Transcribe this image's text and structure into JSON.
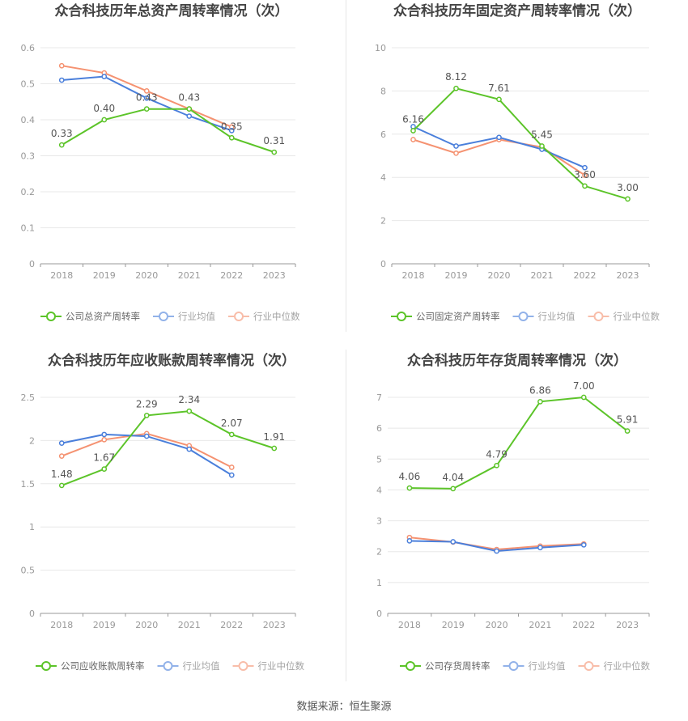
{
  "source_text": "数据来源：恒生聚源",
  "colors": {
    "company": "#5cc429",
    "avg": "#4a7fdb",
    "median": "#f59271",
    "grid": "#e8e8e8",
    "axis": "#999999",
    "tick": "#999999",
    "label": "#555555",
    "title": "#444444"
  },
  "chart_data": [
    {
      "type": "line",
      "title": "众合科技历年总资产周转率情况（次）",
      "categories": [
        "2018",
        "2019",
        "2020",
        "2021",
        "2022",
        "2023"
      ],
      "ylim": [
        0,
        0.6
      ],
      "yticks": [
        "0",
        "0.1",
        "0.2",
        "0.3",
        "0.4",
        "0.5",
        "0.6"
      ],
      "grid": true,
      "legend_position": "bottom",
      "series": [
        {
          "name": "公司总资产周转率",
          "role": "company",
          "values": [
            0.33,
            0.4,
            0.43,
            0.43,
            0.35,
            0.31
          ],
          "labels": [
            "0.33",
            "0.40",
            "0.43",
            "0.43",
            "0.35",
            "0.31"
          ]
        },
        {
          "name": "行业均值",
          "role": "avg",
          "values": [
            0.51,
            0.52,
            0.46,
            0.41,
            0.37,
            null
          ]
        },
        {
          "name": "行业中位数",
          "role": "median",
          "values": [
            0.55,
            0.53,
            0.48,
            0.43,
            0.38,
            null
          ]
        }
      ]
    },
    {
      "type": "line",
      "title": "众合科技历年固定资产周转率情况（次）",
      "categories": [
        "2018",
        "2019",
        "2020",
        "2021",
        "2022",
        "2023"
      ],
      "ylim": [
        0,
        10
      ],
      "yticks": [
        "0",
        "2",
        "4",
        "6",
        "8",
        "10"
      ],
      "grid": true,
      "legend_position": "bottom",
      "series": [
        {
          "name": "公司固定资产周转率",
          "role": "company",
          "values": [
            6.16,
            8.12,
            7.61,
            5.45,
            3.6,
            3.0
          ],
          "labels": [
            "6.16",
            "8.12",
            "7.61",
            "5.45",
            "3.60",
            "3.00"
          ]
        },
        {
          "name": "行业均值",
          "role": "avg",
          "values": [
            6.35,
            5.45,
            5.85,
            5.3,
            4.45,
            null
          ]
        },
        {
          "name": "行业中位数",
          "role": "median",
          "values": [
            5.75,
            5.12,
            5.75,
            5.4,
            4.1,
            null
          ]
        }
      ]
    },
    {
      "type": "line",
      "title": "众合科技历年应收账款周转率情况（次）",
      "categories": [
        "2018",
        "2019",
        "2020",
        "2021",
        "2022",
        "2023"
      ],
      "ylim": [
        0,
        2.5
      ],
      "yticks": [
        "0",
        "0.5",
        "1",
        "1.5",
        "2",
        "2.5"
      ],
      "grid": true,
      "legend_position": "bottom",
      "series": [
        {
          "name": "公司应收账款周转率",
          "role": "company",
          "values": [
            1.48,
            1.67,
            2.29,
            2.34,
            2.07,
            1.91
          ],
          "labels": [
            "1.48",
            "1.67",
            "2.29",
            "2.34",
            "2.07",
            "1.91"
          ]
        },
        {
          "name": "行业均值",
          "role": "avg",
          "values": [
            1.97,
            2.07,
            2.05,
            1.9,
            1.6,
            null
          ]
        },
        {
          "name": "行业中位数",
          "role": "median",
          "values": [
            1.82,
            2.01,
            2.08,
            1.94,
            1.69,
            null
          ]
        }
      ]
    },
    {
      "type": "line",
      "title": "众合科技历年存货周转率情况（次）",
      "categories": [
        "2018",
        "2019",
        "2020",
        "2021",
        "2022",
        "2023"
      ],
      "ylim": [
        0,
        7
      ],
      "yticks": [
        "0",
        "1",
        "2",
        "3",
        "4",
        "5",
        "6",
        "7"
      ],
      "grid": true,
      "legend_position": "bottom",
      "series": [
        {
          "name": "公司存货周转率",
          "role": "company",
          "values": [
            4.06,
            4.04,
            4.79,
            6.86,
            7.0,
            5.91
          ],
          "labels": [
            "4.06",
            "4.04",
            "4.79",
            "6.86",
            "7.00",
            "5.91"
          ]
        },
        {
          "name": "行业均值",
          "role": "avg",
          "values": [
            2.35,
            2.32,
            2.02,
            2.13,
            2.22,
            null
          ]
        },
        {
          "name": "行业中位数",
          "role": "median",
          "values": [
            2.46,
            2.31,
            2.07,
            2.18,
            2.25,
            null
          ]
        }
      ]
    }
  ]
}
